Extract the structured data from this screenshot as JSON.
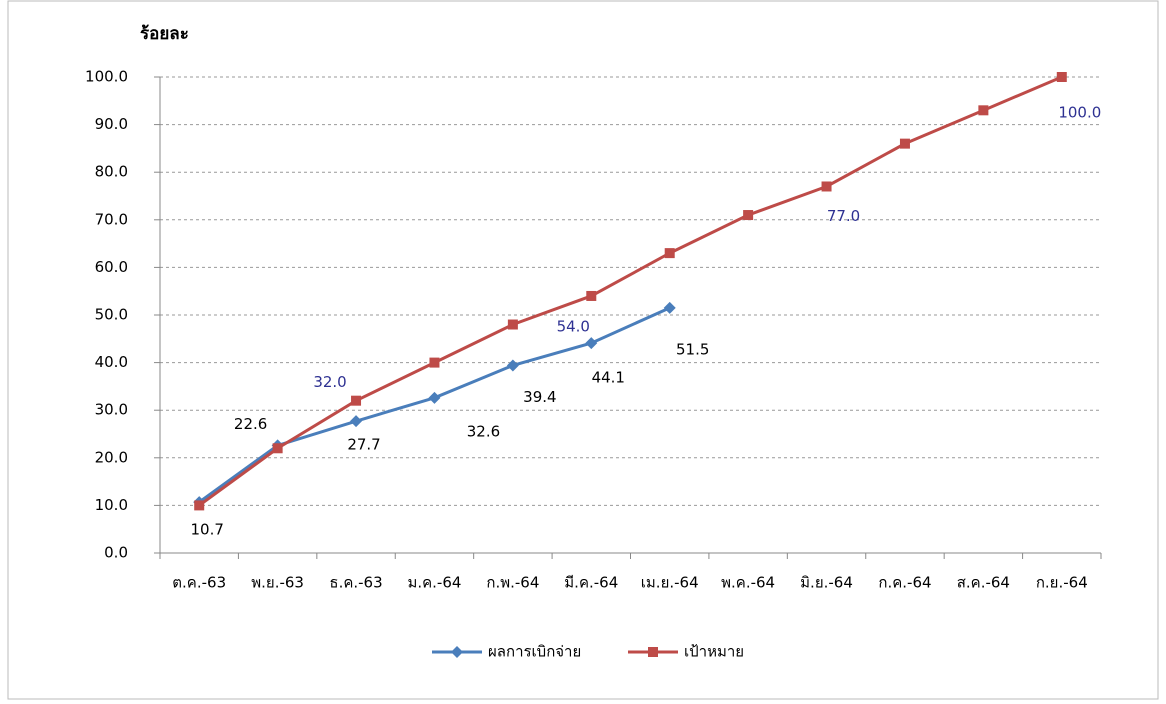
{
  "chart_data": {
    "type": "line",
    "y_label": "ร้อยละ",
    "categories": [
      "ต.ค.-63",
      "พ.ย.-63",
      "ธ.ค.-63",
      "ม.ค.-64",
      "ก.พ.-64",
      "มี.ค.-64",
      "เม.ย.-64",
      "พ.ค.-64",
      "มิ.ย.-64",
      "ก.ค.-64",
      "ส.ค.-64",
      "ก.ย.-64"
    ],
    "series": [
      {
        "name": "ผลการเบิกจ่าย",
        "color": "#4a7ebb",
        "marker": "diamond",
        "label_color": "#000000",
        "values": [
          10.7,
          22.6,
          27.7,
          32.6,
          39.4,
          44.1,
          51.5,
          null,
          null,
          null,
          null,
          null
        ]
      },
      {
        "name": "เป้าหมาย",
        "color": "#be4b48",
        "marker": "square",
        "label_color": "#2e3192",
        "values": [
          10,
          22,
          32,
          40,
          48,
          54,
          63,
          71,
          77,
          86,
          93,
          100
        ],
        "value_labels": [
          null,
          null,
          "32.0",
          null,
          null,
          "54.0",
          null,
          null,
          "77.0",
          null,
          null,
          "100.0"
        ]
      }
    ],
    "ylim": [
      0,
      100
    ],
    "yticks": [
      {
        "value": 0,
        "label": "0.0"
      },
      {
        "value": 10,
        "label": "10.0"
      },
      {
        "value": 20,
        "label": "20.0"
      },
      {
        "value": 30,
        "label": "30.0"
      },
      {
        "value": 40,
        "label": "40.0"
      },
      {
        "value": 50,
        "label": "50.0"
      },
      {
        "value": 60,
        "label": "60.0"
      },
      {
        "value": 70,
        "label": "70.0"
      },
      {
        "value": 80,
        "label": "80.0"
      },
      {
        "value": 90,
        "label": "90.0"
      },
      {
        "value": 100,
        "label": "100.0"
      }
    ],
    "grid": true,
    "legend": "bottom"
  }
}
